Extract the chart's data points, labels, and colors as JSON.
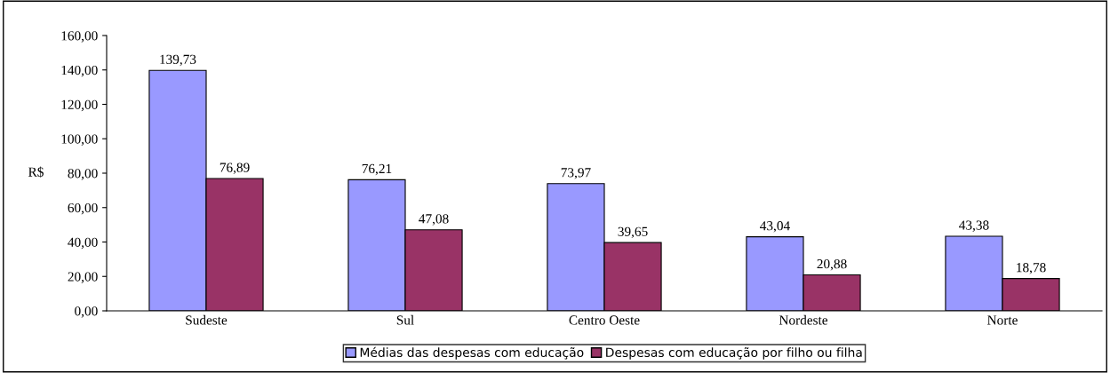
{
  "chart_data": {
    "type": "bar",
    "ylabel": "R$",
    "categories": [
      "Sudeste",
      "Sul",
      "Centro Oeste",
      "Nordeste",
      "Norte"
    ],
    "series": [
      {
        "name": "Médias das despesas com educação",
        "color": "#9999ff",
        "values": [
          139.73,
          76.21,
          73.97,
          43.04,
          43.38
        ],
        "value_labels": [
          "139,73",
          "76,21",
          "73,97",
          "43,04",
          "43,38"
        ]
      },
      {
        "name": "Despesas com educação por filho ou filha",
        "color": "#993366",
        "values": [
          76.89,
          47.08,
          39.65,
          20.88,
          18.78
        ],
        "value_labels": [
          "76,89",
          "47,08",
          "39,65",
          "20,88",
          "18,78"
        ]
      }
    ],
    "ylim": [
      0,
      160
    ],
    "yticks": [
      {
        "value": 0,
        "label": "0,00"
      },
      {
        "value": 20,
        "label": "20,00"
      },
      {
        "value": 40,
        "label": "40,00"
      },
      {
        "value": 60,
        "label": "60,00"
      },
      {
        "value": 80,
        "label": "80,00"
      },
      {
        "value": 100,
        "label": "100,00"
      },
      {
        "value": 120,
        "label": "120,00"
      },
      {
        "value": 140,
        "label": "140,00"
      },
      {
        "value": 160,
        "label": "160,00"
      }
    ],
    "grid": false,
    "legend": "bottom"
  }
}
